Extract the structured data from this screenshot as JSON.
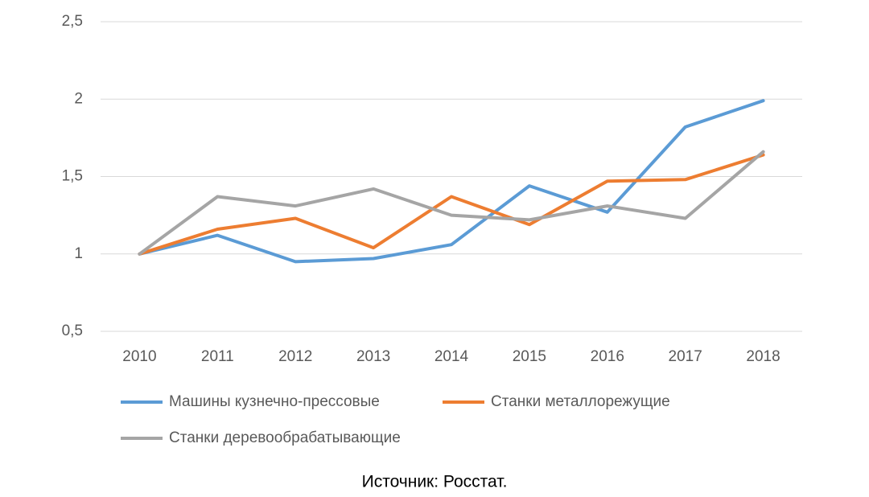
{
  "chart_data": {
    "type": "line",
    "categories": [
      "2010",
      "2011",
      "2012",
      "2013",
      "2014",
      "2015",
      "2016",
      "2017",
      "2018"
    ],
    "series": [
      {
        "name": "Машины кузнечно-прессовые",
        "color": "#5b9bd5",
        "values": [
          1.0,
          1.12,
          0.95,
          0.97,
          1.06,
          1.44,
          1.27,
          1.82,
          1.99
        ]
      },
      {
        "name": "Станки металлорежущие",
        "color": "#ed7d31",
        "values": [
          1.0,
          1.16,
          1.23,
          1.04,
          1.37,
          1.19,
          1.47,
          1.48,
          1.64
        ]
      },
      {
        "name": "Станки деревообрабатывающие",
        "color": "#a5a5a5",
        "values": [
          1.0,
          1.37,
          1.31,
          1.42,
          1.25,
          1.22,
          1.31,
          1.23,
          1.66
        ]
      }
    ],
    "ylim": [
      0.5,
      2.5
    ],
    "yticks": [
      {
        "value": 0.5,
        "label": "0,5"
      },
      1,
      {
        "value": 1.5,
        "label": "1,5"
      },
      2,
      {
        "value": 2.5,
        "label": "2,5"
      }
    ],
    "grid": true,
    "legend": "bottom",
    "source": "Источник: Росстат."
  }
}
